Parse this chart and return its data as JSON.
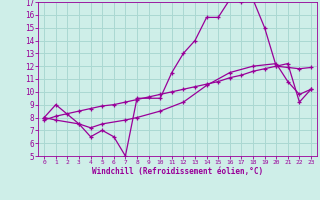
{
  "xlabel": "Windchill (Refroidissement éolien,°C)",
  "bg_color": "#ceeee8",
  "grid_color": "#aad8d2",
  "line_color": "#990099",
  "xlim": [
    -0.5,
    23.5
  ],
  "ylim": [
    5,
    17
  ],
  "xticks": [
    0,
    1,
    2,
    3,
    4,
    5,
    6,
    7,
    8,
    9,
    10,
    11,
    12,
    13,
    14,
    15,
    16,
    17,
    18,
    19,
    20,
    21,
    22,
    23
  ],
  "yticks": [
    5,
    6,
    7,
    8,
    9,
    10,
    11,
    12,
    13,
    14,
    15,
    16,
    17
  ],
  "curve1_x": [
    0,
    1,
    3,
    4,
    5,
    6,
    7,
    8,
    10,
    11,
    12,
    13,
    14,
    15,
    16,
    17,
    18,
    19,
    20,
    21,
    22,
    23
  ],
  "curve1_y": [
    8.0,
    9.0,
    7.5,
    6.5,
    7.0,
    6.5,
    5.0,
    9.5,
    9.5,
    11.5,
    13.0,
    14.0,
    15.8,
    15.8,
    17.2,
    17.0,
    17.2,
    15.0,
    12.0,
    12.2,
    9.2,
    10.2
  ],
  "curve2_x": [
    0,
    1,
    2,
    3,
    4,
    5,
    6,
    7,
    8,
    9,
    10,
    11,
    12,
    13,
    14,
    15,
    16,
    17,
    18,
    19,
    20,
    21,
    22,
    23
  ],
  "curve2_y": [
    7.8,
    8.1,
    8.3,
    8.5,
    8.7,
    8.9,
    9.0,
    9.2,
    9.4,
    9.6,
    9.8,
    10.0,
    10.2,
    10.4,
    10.6,
    10.8,
    11.1,
    11.3,
    11.6,
    11.8,
    12.0,
    11.9,
    11.8,
    11.9
  ],
  "curve3_x": [
    0,
    1,
    3,
    4,
    5,
    7,
    8,
    10,
    12,
    14,
    16,
    18,
    20,
    21,
    22,
    23
  ],
  "curve3_y": [
    8.0,
    7.8,
    7.5,
    7.2,
    7.5,
    7.8,
    8.0,
    8.5,
    9.2,
    10.5,
    11.5,
    12.0,
    12.2,
    10.8,
    9.8,
    10.2
  ]
}
